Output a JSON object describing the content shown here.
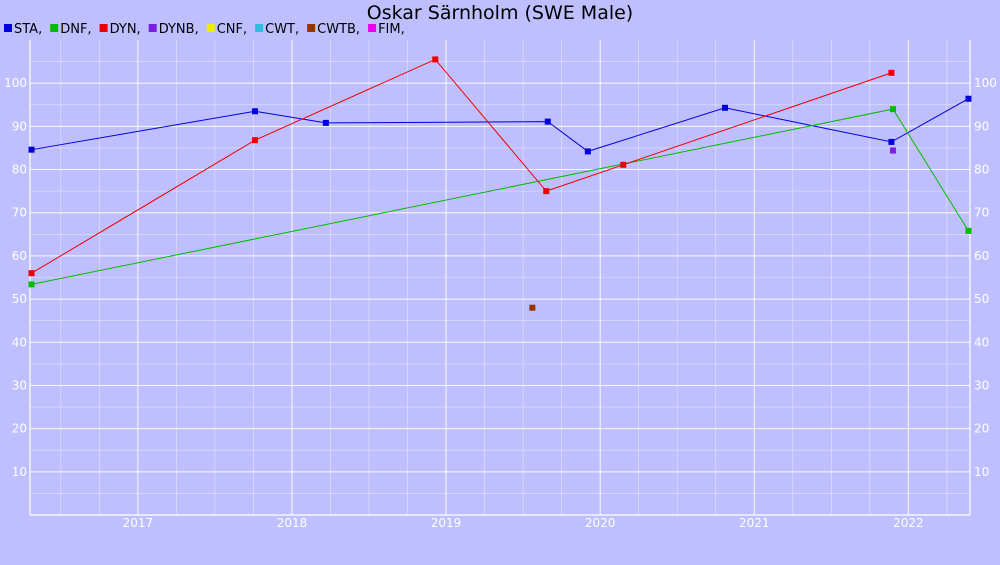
{
  "chart_data": {
    "type": "line",
    "title": "Oskar Särnholm (SWE Male)",
    "xlabel": "",
    "ylabel": "",
    "xlim": [
      2016.3,
      2022.4
    ],
    "ylim": [
      0,
      110
    ],
    "x_ticks": [
      "2017",
      "2018",
      "2019",
      "2020",
      "2021",
      "2022"
    ],
    "y_ticks": [
      "10",
      "20",
      "30",
      "40",
      "50",
      "60",
      "70",
      "80",
      "90",
      "100"
    ],
    "grid": true,
    "legend_position": "top-left",
    "background_color": "#bfbfff",
    "legend": [
      {
        "label": "STA,",
        "color": "#0000dd"
      },
      {
        "label": "DNF,",
        "color": "#00bb00"
      },
      {
        "label": "DYN,",
        "color": "#ee0000"
      },
      {
        "label": "DYNB,",
        "color": "#7a1fe0"
      },
      {
        "label": "CNF,",
        "color": "#eeee00"
      },
      {
        "label": "CWT,",
        "color": "#33bbdd"
      },
      {
        "label": "CWTB,",
        "color": "#993300"
      },
      {
        "label": "FIM,",
        "color": "#ee00ee"
      }
    ],
    "series": [
      {
        "name": "STA",
        "color": "#0000dd",
        "points": [
          [
            2016.31,
            84.6
          ],
          [
            2017.76,
            93.5
          ],
          [
            2018.22,
            90.8
          ],
          [
            2019.66,
            91.1
          ],
          [
            2019.92,
            84.2
          ],
          [
            2020.81,
            94.3
          ],
          [
            2021.89,
            86.4
          ],
          [
            2022.39,
            96.4
          ]
        ]
      },
      {
        "name": "DNF",
        "color": "#00bb00",
        "points": [
          [
            2016.31,
            53.4
          ],
          [
            2021.9,
            94.0
          ],
          [
            2022.39,
            65.8
          ]
        ]
      },
      {
        "name": "DYN",
        "color": "#ee0000",
        "points": [
          [
            2016.31,
            56.0
          ],
          [
            2017.76,
            86.8
          ],
          [
            2018.93,
            105.5
          ],
          [
            2019.65,
            75.0
          ],
          [
            2020.15,
            81.1
          ],
          [
            2021.89,
            102.4
          ]
        ]
      },
      {
        "name": "DYNB",
        "color": "#7a1fe0",
        "points": [
          [
            2021.9,
            84.4
          ]
        ]
      },
      {
        "name": "CWTB",
        "color": "#993300",
        "points": [
          [
            2019.56,
            48.0
          ]
        ]
      }
    ]
  }
}
